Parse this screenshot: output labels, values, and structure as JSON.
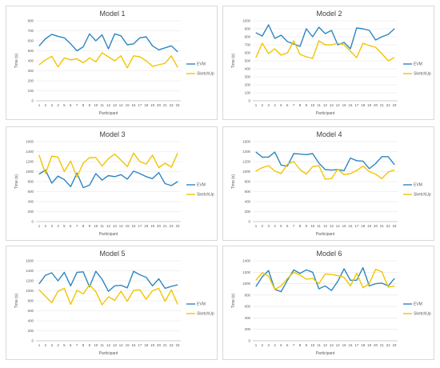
{
  "colors": {
    "evm": "#2e86c1",
    "sketchup": "#f2c500",
    "grid": "#e3e3e3"
  },
  "chart_data": [
    {
      "type": "line",
      "title": "Model 1",
      "xlabel": "Participant",
      "ylabel": "Time (s)",
      "ylim": [
        0,
        800
      ],
      "yticks": [
        0,
        100,
        200,
        300,
        400,
        500,
        600,
        700,
        800
      ],
      "categories": [
        "1",
        "2",
        "3",
        "4",
        "5",
        "6",
        "7",
        "8",
        "9",
        "10",
        "11",
        "12",
        "13",
        "14",
        "15",
        "16",
        "17",
        "18",
        "19",
        "20",
        "21",
        "22",
        "23"
      ],
      "grid": true,
      "legend": "right",
      "series": [
        {
          "name": "EVM",
          "values": [
            550,
            620,
            665,
            645,
            630,
            570,
            500,
            540,
            670,
            600,
            660,
            520,
            670,
            650,
            560,
            570,
            630,
            640,
            550,
            510,
            530,
            550,
            490
          ]
        },
        {
          "name": "SketchUp",
          "values": [
            360,
            410,
            445,
            340,
            430,
            410,
            420,
            380,
            430,
            390,
            480,
            440,
            400,
            450,
            330,
            450,
            440,
            400,
            345,
            360,
            375,
            450,
            335
          ]
        }
      ]
    },
    {
      "type": "line",
      "title": "Model 2",
      "xlabel": "Participant",
      "ylabel": "Time (s)",
      "ylim": [
        0,
        1000
      ],
      "yticks": [
        0,
        100,
        200,
        300,
        400,
        500,
        600,
        700,
        800,
        900,
        1000
      ],
      "categories": [
        "1",
        "2",
        "3",
        "4",
        "5",
        "6",
        "7",
        "8",
        "9",
        "10",
        "11",
        "12",
        "13",
        "14",
        "15",
        "16",
        "17",
        "18",
        "19",
        "20",
        "21",
        "22",
        "23"
      ],
      "grid": true,
      "legend": "right",
      "series": [
        {
          "name": "EVM",
          "values": [
            850,
            810,
            950,
            780,
            820,
            740,
            710,
            680,
            900,
            800,
            920,
            840,
            880,
            700,
            730,
            650,
            910,
            900,
            880,
            760,
            800,
            830,
            900
          ]
        },
        {
          "name": "SketchUp",
          "values": [
            540,
            720,
            590,
            650,
            570,
            600,
            750,
            580,
            550,
            530,
            750,
            700,
            700,
            720,
            700,
            620,
            540,
            720,
            690,
            670,
            590,
            500,
            540
          ]
        }
      ]
    },
    {
      "type": "line",
      "title": "Model 3",
      "xlabel": "Participant",
      "ylabel": "Time (s)",
      "ylim": [
        0,
        1600
      ],
      "yticks": [
        0,
        200,
        400,
        600,
        800,
        1000,
        1200,
        1400,
        1600
      ],
      "categories": [
        "1",
        "2",
        "3",
        "4",
        "5",
        "6",
        "7",
        "8",
        "9",
        "10",
        "11",
        "12",
        "13",
        "14",
        "15",
        "16",
        "17",
        "18",
        "19",
        "20",
        "21",
        "22",
        "23"
      ],
      "grid": true,
      "legend": "right",
      "series": [
        {
          "name": "EVM",
          "values": [
            950,
            1030,
            770,
            910,
            840,
            700,
            970,
            680,
            730,
            960,
            830,
            920,
            900,
            940,
            850,
            1010,
            960,
            900,
            860,
            980,
            760,
            720,
            800
          ]
        },
        {
          "name": "SketchUp",
          "values": [
            1330,
            960,
            1310,
            1290,
            1000,
            1210,
            890,
            1170,
            1280,
            1280,
            1110,
            1260,
            1350,
            1230,
            1100,
            1370,
            1200,
            1150,
            1330,
            1080,
            1170,
            1090,
            1370
          ]
        }
      ]
    },
    {
      "type": "line",
      "title": "Model 4",
      "xlabel": "Participant",
      "ylabel": "Time (s)",
      "ylim": [
        0,
        1600
      ],
      "yticks": [
        0,
        200,
        400,
        600,
        800,
        1000,
        1200,
        1400,
        1600
      ],
      "categories": [
        "1",
        "2",
        "3",
        "4",
        "5",
        "6",
        "7",
        "8",
        "9",
        "10",
        "11",
        "12",
        "13",
        "14",
        "15",
        "16",
        "17",
        "18",
        "19",
        "20",
        "21",
        "22",
        "23"
      ],
      "grid": true,
      "legend": "right",
      "series": [
        {
          "name": "EVM",
          "values": [
            1390,
            1290,
            1290,
            1390,
            1130,
            1110,
            1360,
            1350,
            1340,
            1360,
            1170,
            1040,
            1030,
            1040,
            1020,
            1270,
            1220,
            1210,
            1060,
            1160,
            1300,
            1300,
            1140
          ]
        },
        {
          "name": "SketchUp",
          "values": [
            1010,
            1080,
            1120,
            1010,
            960,
            1150,
            1200,
            1040,
            950,
            1100,
            1120,
            850,
            860,
            1050,
            940,
            960,
            1020,
            1110,
            1000,
            950,
            860,
            990,
            1030
          ]
        }
      ]
    },
    {
      "type": "line",
      "title": "Model 5",
      "xlabel": "Participant",
      "ylabel": "Time (s)",
      "ylim": [
        0,
        1600
      ],
      "yticks": [
        0,
        200,
        400,
        600,
        800,
        1000,
        1200,
        1400,
        1600
      ],
      "categories": [
        "1",
        "2",
        "3",
        "4",
        "5",
        "6",
        "7",
        "8",
        "9",
        "10",
        "11",
        "12",
        "13",
        "14",
        "15",
        "16",
        "17",
        "18",
        "19",
        "20",
        "21",
        "22",
        "23"
      ],
      "grid": true,
      "legend": "right",
      "series": [
        {
          "name": "EVM",
          "values": [
            1140,
            1310,
            1360,
            1200,
            1370,
            1100,
            1370,
            1380,
            1080,
            1390,
            1230,
            990,
            1100,
            1110,
            1060,
            1390,
            1320,
            1270,
            1100,
            1240,
            1050,
            1090,
            1120
          ]
        },
        {
          "name": "SketchUp",
          "values": [
            1020,
            890,
            760,
            990,
            1050,
            730,
            1010,
            940,
            1120,
            980,
            720,
            880,
            810,
            990,
            790,
            1010,
            1020,
            830,
            1000,
            1050,
            790,
            1020,
            730
          ]
        }
      ]
    },
    {
      "type": "line",
      "title": "Model 6",
      "xlabel": "Participant",
      "ylabel": "Time (s)",
      "ylim": [
        0,
        1400
      ],
      "yticks": [
        0,
        200,
        400,
        600,
        800,
        1000,
        1200,
        1400
      ],
      "categories": [
        "1",
        "2",
        "3",
        "4",
        "5",
        "6",
        "7",
        "8",
        "9",
        "10",
        "11",
        "12",
        "13",
        "14",
        "15",
        "16",
        "17",
        "18",
        "19",
        "20",
        "21",
        "22",
        "23"
      ],
      "grid": true,
      "legend": "right",
      "series": [
        {
          "name": "EVM",
          "values": [
            950,
            1120,
            1230,
            900,
            860,
            1060,
            1240,
            1180,
            1240,
            1200,
            910,
            960,
            880,
            1040,
            1260,
            1060,
            1060,
            1280,
            960,
            1000,
            1010,
            960,
            1090
          ]
        },
        {
          "name": "SketchUp",
          "values": [
            1060,
            1190,
            1130,
            900,
            960,
            1090,
            1200,
            1150,
            1080,
            1090,
            1000,
            1170,
            1160,
            1140,
            1110,
            960,
            1180,
            930,
            1000,
            1250,
            1210,
            940,
            960
          ]
        }
      ]
    }
  ]
}
